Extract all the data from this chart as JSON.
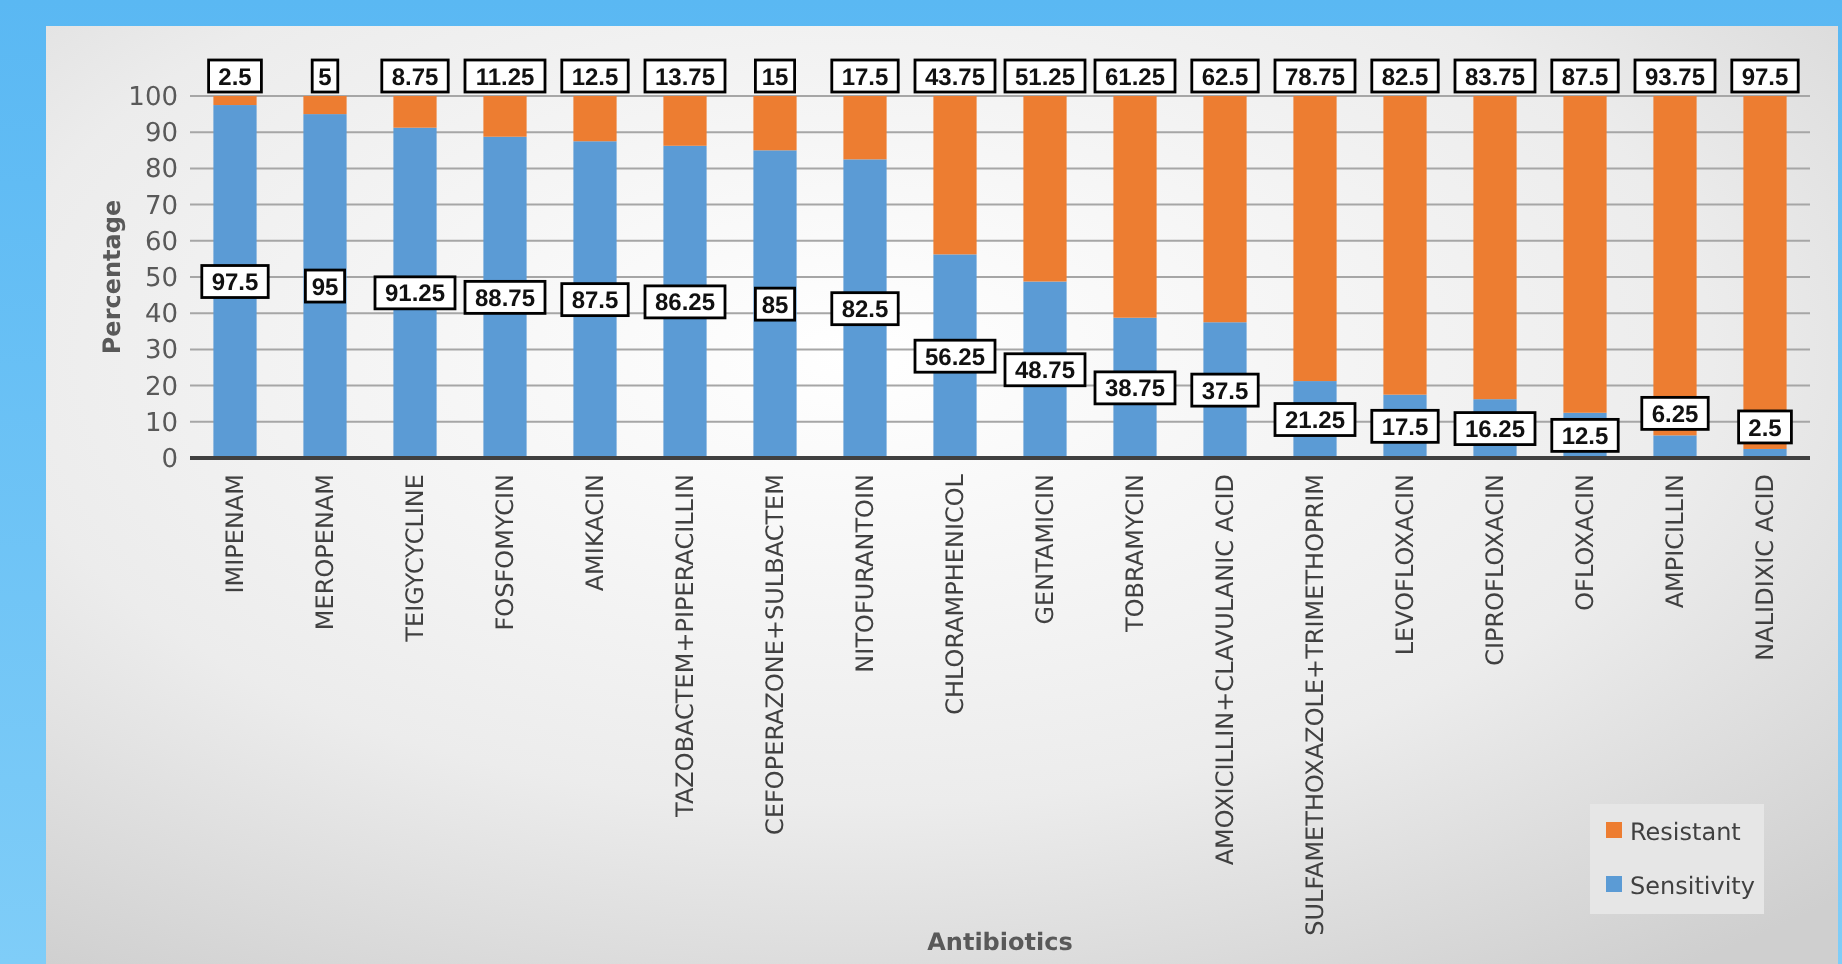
{
  "chart_data": {
    "type": "bar",
    "stacked": true,
    "xlabel": "Antibiotics",
    "ylabel": "Percentage",
    "categories": [
      "IMIPENAM",
      "MEROPENAM",
      "TEIGYCYCLINE",
      "FOSFOMYCIN",
      "AMIKACIN",
      "TAZOBACTEM+PIPERACILLIN",
      "CEFOPERAZONE+SULBACTEM",
      "NITOFURANTOIN",
      "CHLORAMPHENICOL",
      "GENTAMICIN",
      "TOBRAMYCIN",
      "AMOXICILLIN+CLAVULANIC ACID",
      "SULFAMETHOXAZOLE+TRIMETHOPRIM",
      "LEVOFLOXACIN",
      "CIPROFLOXACIN",
      "OFLOXACIN",
      "AMPICILLIN",
      "NALIDIXIC ACID"
    ],
    "series": [
      {
        "name": "Sensitivity",
        "color": "#5b9bd5",
        "values": [
          97.5,
          95,
          91.25,
          88.75,
          87.5,
          86.25,
          85,
          82.5,
          56.25,
          48.75,
          38.75,
          37.5,
          21.25,
          17.5,
          16.25,
          12.5,
          6.25,
          2.5
        ]
      },
      {
        "name": "Resistant",
        "color": "#ed7d31",
        "values": [
          2.5,
          5,
          8.75,
          11.25,
          12.5,
          13.75,
          15,
          17.5,
          43.75,
          51.25,
          61.25,
          62.5,
          78.75,
          82.5,
          83.75,
          87.5,
          93.75,
          97.5
        ]
      }
    ],
    "ylim": [
      0,
      100
    ],
    "yticks": [
      0,
      10,
      20,
      30,
      40,
      50,
      60,
      70,
      80,
      90,
      100
    ],
    "grid": "y",
    "legend": "bottom right",
    "data_labels": true
  }
}
